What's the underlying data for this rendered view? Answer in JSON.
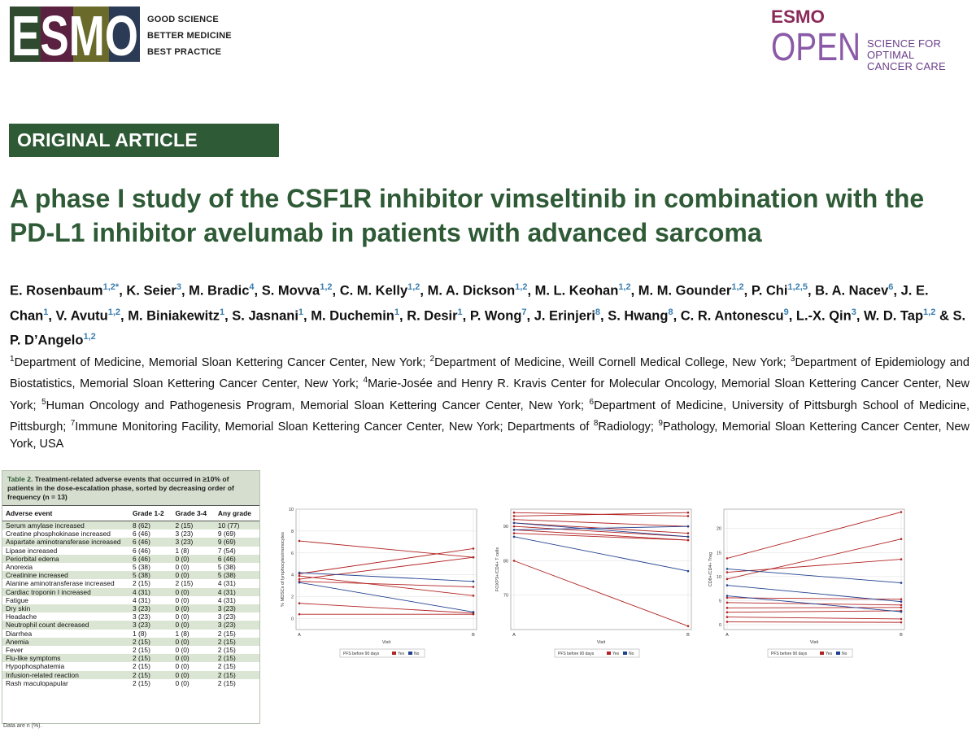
{
  "header": {
    "esmo_logo": "ESMO",
    "tagline": [
      "GOOD SCIENCE",
      "BETTER MEDICINE",
      "BEST PRACTICE"
    ],
    "journal_logo_top": "ESMO",
    "journal_logo_bottom": "OPEN",
    "journal_tagline": [
      "SCIENCE FOR OPTIMAL",
      "CANCER CARE"
    ]
  },
  "article_type": "ORIGINAL ARTICLE",
  "title": "A phase I study of the CSF1R inhibitor vimseltinib in combination with the PD-L1 inhibitor avelumab in patients with advanced sarcoma",
  "authors": [
    {
      "name": "E. Rosenbaum",
      "aff": "1,2*"
    },
    {
      "name": "K. Seier",
      "aff": "3"
    },
    {
      "name": "M. Bradic",
      "aff": "4"
    },
    {
      "name": "S. Movva",
      "aff": "1,2"
    },
    {
      "name": "C. M. Kelly",
      "aff": "1,2"
    },
    {
      "name": "M. A. Dickson",
      "aff": "1,2"
    },
    {
      "name": "M. L. Keohan",
      "aff": "1,2"
    },
    {
      "name": "M. M. Gounder",
      "aff": "1,2"
    },
    {
      "name": "P. Chi",
      "aff": "1,2,5"
    },
    {
      "name": "B. A. Nacev",
      "aff": "6"
    },
    {
      "name": "J. E. Chan",
      "aff": "1"
    },
    {
      "name": "V. Avutu",
      "aff": "1,2"
    },
    {
      "name": "M. Biniakewitz",
      "aff": "1"
    },
    {
      "name": "S. Jasnani",
      "aff": "1"
    },
    {
      "name": "M. Duchemin",
      "aff": "1"
    },
    {
      "name": "R. Desir",
      "aff": "1"
    },
    {
      "name": "P. Wong",
      "aff": "7"
    },
    {
      "name": "J. Erinjeri",
      "aff": "8"
    },
    {
      "name": "S. Hwang",
      "aff": "8"
    },
    {
      "name": "C. R. Antonescu",
      "aff": "9"
    },
    {
      "name": "L.-X. Qin",
      "aff": "3"
    },
    {
      "name": "W. D. Tap",
      "aff": "1,2"
    },
    {
      "name": "S. P. D’Angelo",
      "aff": "1,2"
    }
  ],
  "author_final_joiner": "&",
  "affiliations": [
    {
      "n": "1",
      "text": "Department of Medicine, Memorial Sloan Kettering Cancer Center, New York; "
    },
    {
      "n": "2",
      "text": "Department of Medicine, Weill Cornell Medical College, New York; "
    },
    {
      "n": "3",
      "text": "Department of Epidemiology and Biostatistics, Memorial Sloan Kettering Cancer Center, New York; "
    },
    {
      "n": "4",
      "text": "Marie-Josée and Henry R. Kravis Center for Molecular Oncology, Memorial Sloan Kettering Cancer Center, New York; "
    },
    {
      "n": "5",
      "text": "Human Oncology and Pathogenesis Program, Memorial Sloan Kettering Cancer Center, New York; "
    },
    {
      "n": "6",
      "text": "Department of Medicine, University of Pittsburgh School of Medicine, Pittsburgh; "
    },
    {
      "n": "7",
      "text": "Immune Monitoring Facility, Memorial Sloan Kettering Cancer Center, New York; Departments of "
    },
    {
      "n": "8",
      "text": "Radiology; "
    },
    {
      "n": "9",
      "text": "Pathology, Memorial Sloan Kettering Cancer Center, New York, USA"
    }
  ],
  "table": {
    "caption_lead": "Table 2.",
    "caption_text": " Treatment-related adverse events that occurred in ≥10% of patients in the dose-escalation phase, sorted by decreasing order of frequency (n = 13)",
    "headers": [
      "Adverse event",
      "Grade 1-2",
      "Grade 3-4",
      "Any grade"
    ],
    "rows": [
      [
        "Serum amylase increased",
        "8 (62)",
        "2 (15)",
        "10 (77)"
      ],
      [
        "Creatine phosphokinase increased",
        "6 (46)",
        "3 (23)",
        "9 (69)"
      ],
      [
        "Aspartate aminotransferase increased",
        "6 (46)",
        "3 (23)",
        "9 (69)"
      ],
      [
        "Lipase increased",
        "6 (46)",
        "1 (8)",
        "7 (54)"
      ],
      [
        "Periorbital edema",
        "6 (46)",
        "0 (0)",
        "6 (46)"
      ],
      [
        "Anorexia",
        "5 (38)",
        "0 (0)",
        "5 (38)"
      ],
      [
        "Creatinine increased",
        "5 (38)",
        "0 (0)",
        "5 (38)"
      ],
      [
        "Alanine aminotransferase increased",
        "2 (15)",
        "2 (15)",
        "4 (31)"
      ],
      [
        "Cardiac troponin I increased",
        "4 (31)",
        "0 (0)",
        "4 (31)"
      ],
      [
        "Fatigue",
        "4 (31)",
        "0 (0)",
        "4 (31)"
      ],
      [
        "Dry skin",
        "3 (23)",
        "0 (0)",
        "3 (23)"
      ],
      [
        "Headache",
        "3 (23)",
        "0 (0)",
        "3 (23)"
      ],
      [
        "Neutrophil count decreased",
        "3 (23)",
        "0 (0)",
        "3 (23)"
      ],
      [
        "Diarrhea",
        "1 (8)",
        "1 (8)",
        "2 (15)"
      ],
      [
        "Anemia",
        "2 (15)",
        "0 (0)",
        "2 (15)"
      ],
      [
        "Fever",
        "2 (15)",
        "0 (0)",
        "2 (15)"
      ],
      [
        "Flu-like symptoms",
        "2 (15)",
        "0 (0)",
        "2 (15)"
      ],
      [
        "Hypophosphatemia",
        "2 (15)",
        "0 (0)",
        "2 (15)"
      ],
      [
        "Infusion-related reaction",
        "2 (15)",
        "0 (0)",
        "2 (15)"
      ],
      [
        "Rash maculopapular",
        "2 (15)",
        "0 (0)",
        "2 (15)"
      ]
    ],
    "footnote": "Data are n (%)."
  },
  "colors": {
    "brand_green": "#2e5a36",
    "row_alt": "#dbe5d3",
    "yes": "#b22222",
    "no": "#1f3f8f"
  },
  "chart_data": [
    {
      "type": "line",
      "categories": [
        "A",
        "B"
      ],
      "xlabel": "Visit",
      "ylabel": "% MDSCs of lymphocytes/monocytes",
      "ylim": [
        -1,
        10
      ],
      "yticks": [
        0,
        2,
        4,
        6,
        8,
        10
      ],
      "legend": {
        "title": "PFS before 90 days",
        "items": [
          "Yes",
          "No"
        ]
      },
      "series": [
        {
          "group": "Yes",
          "values": [
            7.1,
            5.6
          ]
        },
        {
          "group": "Yes",
          "values": [
            4.1,
            6.4
          ]
        },
        {
          "group": "Yes",
          "values": [
            3.6,
            5.6
          ]
        },
        {
          "group": "Yes",
          "values": [
            3.4,
            2.9
          ]
        },
        {
          "group": "Yes",
          "values": [
            1.4,
            0.5
          ]
        },
        {
          "group": "Yes",
          "values": [
            0.4,
            0.4
          ]
        },
        {
          "group": "Yes",
          "values": [
            3.9,
            2.1
          ]
        },
        {
          "group": "No",
          "values": [
            4.2,
            3.4
          ]
        },
        {
          "group": "No",
          "values": [
            3.3,
            0.6
          ]
        }
      ]
    },
    {
      "type": "line",
      "categories": [
        "A",
        "B"
      ],
      "xlabel": "Visit",
      "ylabel": "FOXP3+/CD4+ T cells",
      "ylim": [
        60,
        95
      ],
      "yticks": [
        70,
        80,
        90
      ],
      "legend": {
        "title": "PFS before 90 days",
        "items": [
          "Yes",
          "No"
        ]
      },
      "series": [
        {
          "group": "Yes",
          "values": [
            94,
            93
          ]
        },
        {
          "group": "Yes",
          "values": [
            93,
            94
          ]
        },
        {
          "group": "Yes",
          "values": [
            92,
            90
          ]
        },
        {
          "group": "Yes",
          "values": [
            91,
            88
          ]
        },
        {
          "group": "Yes",
          "values": [
            90,
            87
          ]
        },
        {
          "group": "Yes",
          "values": [
            89,
            86
          ]
        },
        {
          "group": "Yes",
          "values": [
            88,
            86
          ]
        },
        {
          "group": "Yes",
          "values": [
            80,
            61
          ]
        },
        {
          "group": "No",
          "values": [
            91,
            87
          ]
        },
        {
          "group": "No",
          "values": [
            87,
            77
          ]
        },
        {
          "group": "No",
          "values": [
            89,
            90
          ]
        }
      ]
    },
    {
      "type": "line",
      "categories": [
        "A",
        "B"
      ],
      "xlabel": "Visit",
      "ylabel": "CD8+/CD4+ Treg",
      "ylim": [
        -1,
        24
      ],
      "yticks": [
        0,
        5,
        10,
        15,
        20
      ],
      "legend": {
        "title": "PFS before 90 days",
        "items": [
          "Yes",
          "No"
        ]
      },
      "series": [
        {
          "group": "Yes",
          "values": [
            13.8,
            23.4
          ]
        },
        {
          "group": "Yes",
          "values": [
            9.5,
            17.8
          ]
        },
        {
          "group": "Yes",
          "values": [
            10.9,
            13.6
          ]
        },
        {
          "group": "Yes",
          "values": [
            5.6,
            5.3
          ]
        },
        {
          "group": "Yes",
          "values": [
            4.6,
            4.1
          ]
        },
        {
          "group": "Yes",
          "values": [
            3.5,
            3.6
          ]
        },
        {
          "group": "Yes",
          "values": [
            2.6,
            2.9
          ]
        },
        {
          "group": "Yes",
          "values": [
            1.6,
            1.2
          ]
        },
        {
          "group": "Yes",
          "values": [
            0.6,
            0.5
          ]
        },
        {
          "group": "No",
          "values": [
            11.6,
            8.7
          ]
        },
        {
          "group": "No",
          "values": [
            8.2,
            4.8
          ]
        },
        {
          "group": "No",
          "values": [
            6.0,
            2.7
          ]
        }
      ]
    }
  ]
}
